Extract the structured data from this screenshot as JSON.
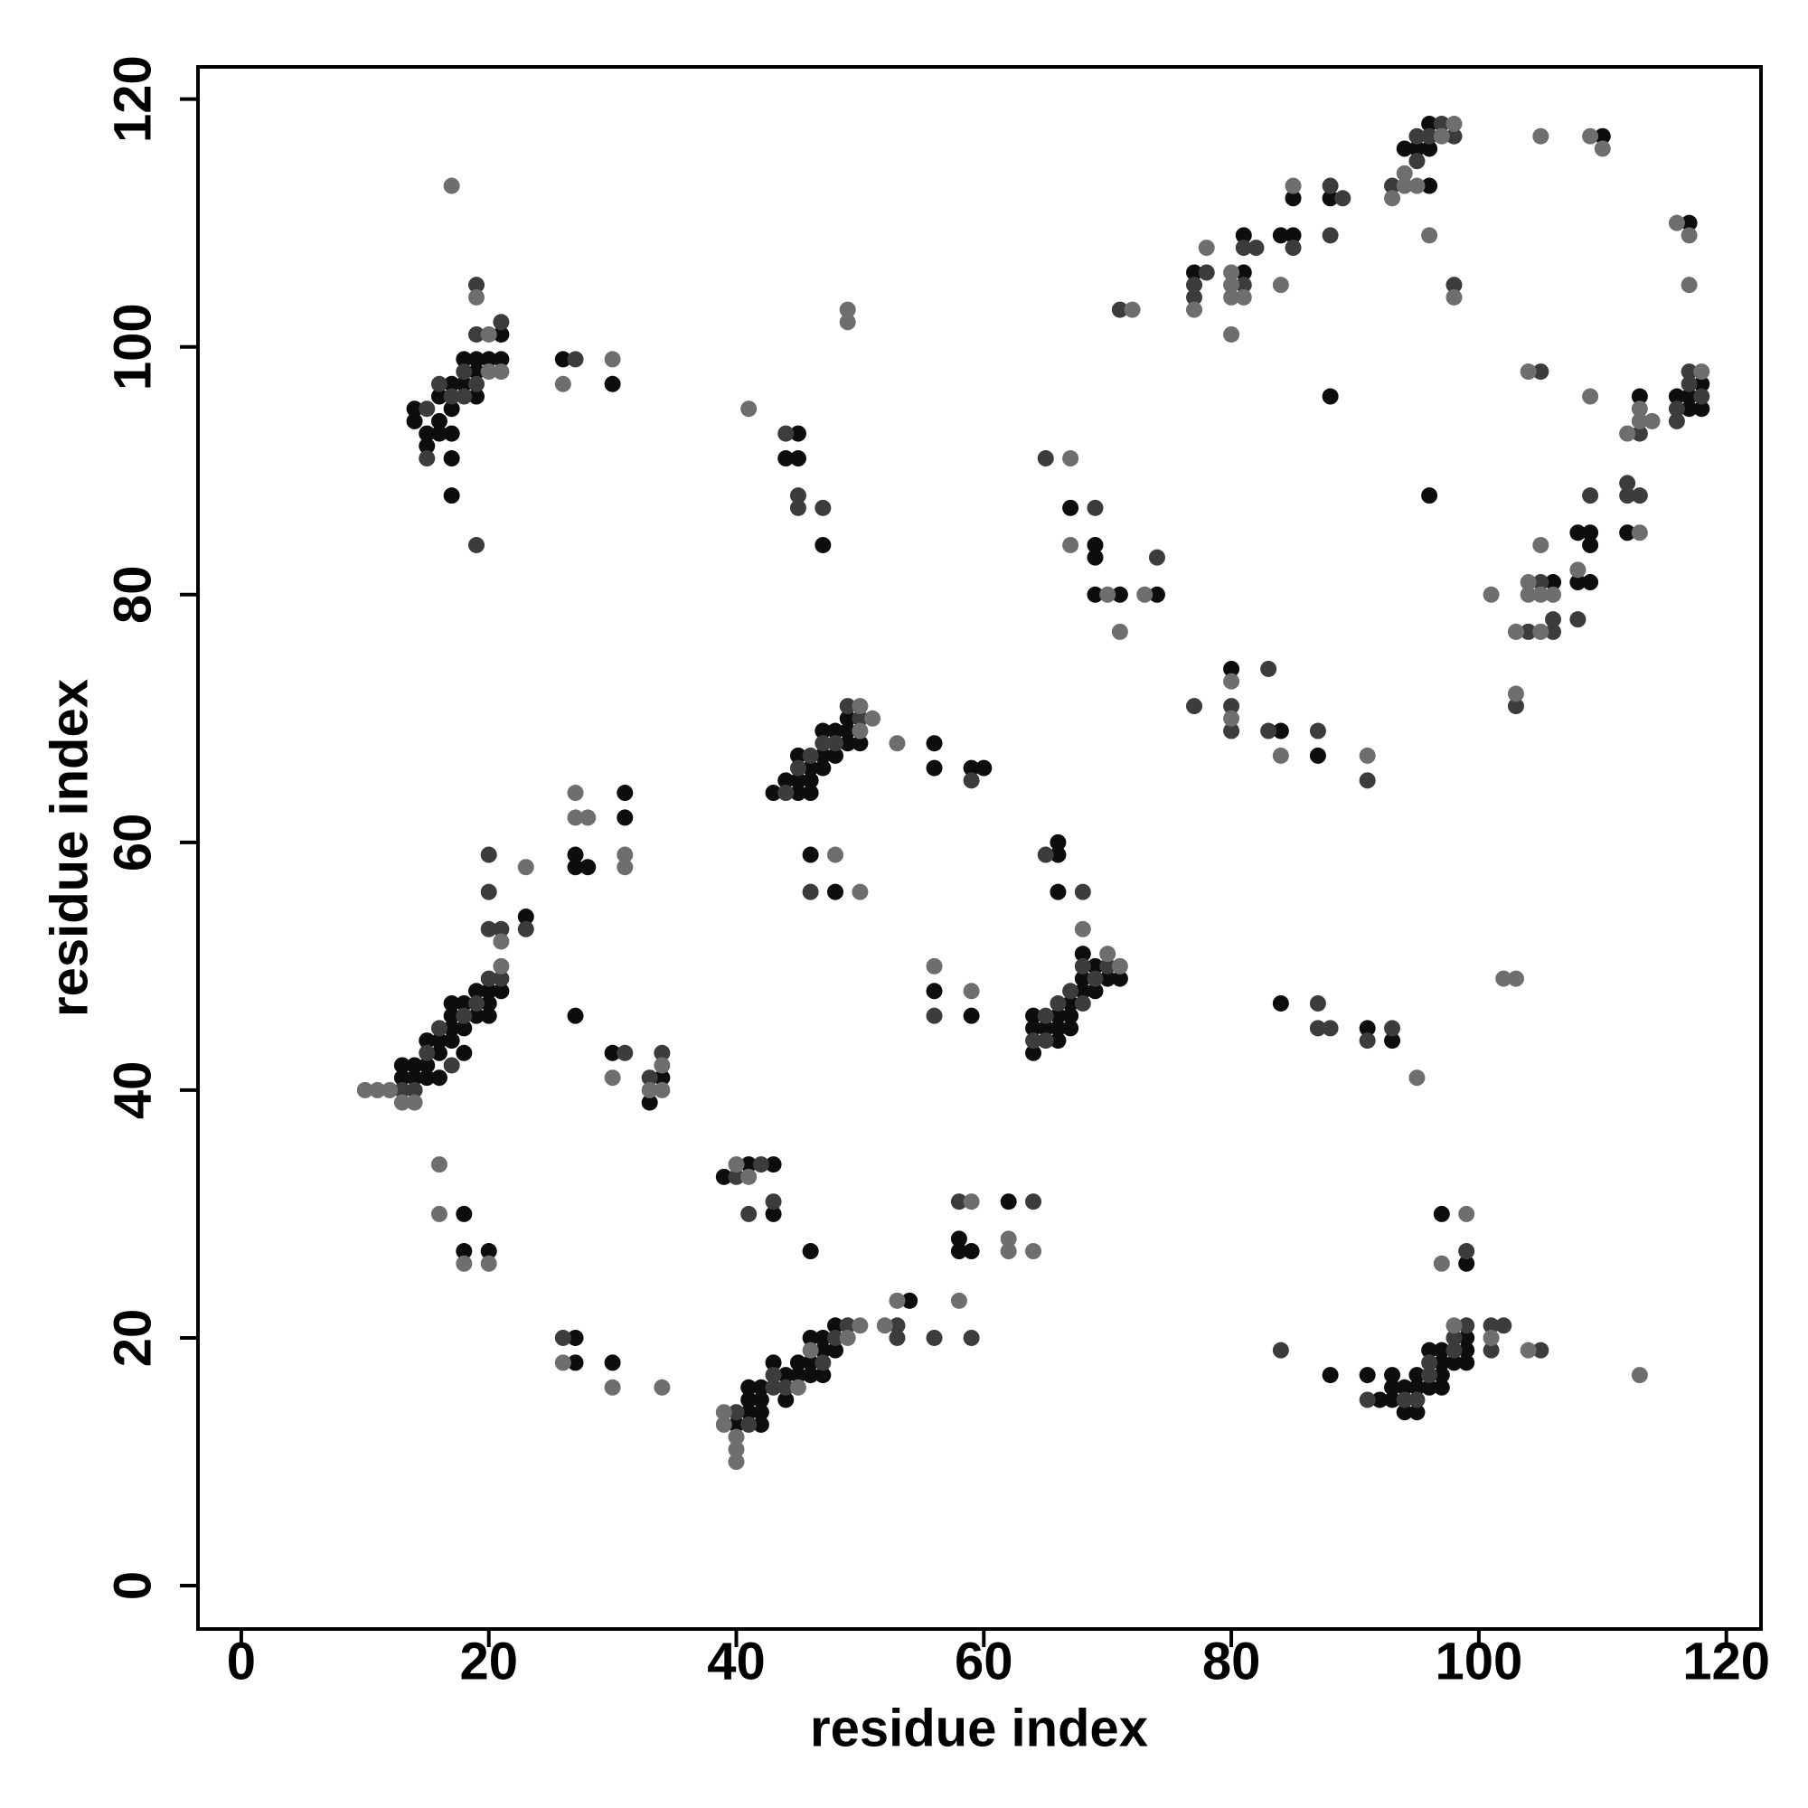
{
  "chart_data": {
    "type": "scatter",
    "x_label": "residue index",
    "y_label": "residue index",
    "xlim": [
      -3.5,
      122.8
    ],
    "ylim": [
      -3.5,
      122.6
    ],
    "xticks": [
      0,
      20,
      40,
      60,
      80,
      100,
      120
    ],
    "yticks": [
      0,
      20,
      40,
      60,
      80,
      100,
      120
    ],
    "grid": false,
    "series": [
      {
        "color": "#0d0d0d",
        "x": [
          14,
          14,
          15,
          15,
          16,
          16,
          16,
          17,
          17,
          17,
          17,
          17,
          18,
          18,
          19,
          19,
          19,
          20,
          21,
          21,
          26,
          30,
          13,
          13,
          14,
          14,
          15,
          15,
          15,
          16,
          16,
          16,
          17,
          17,
          17,
          17,
          18,
          18,
          18,
          19,
          19,
          20,
          20,
          20,
          21,
          23,
          27,
          27,
          28,
          31,
          31,
          27,
          30,
          33,
          34,
          18,
          18,
          20,
          27,
          27,
          30,
          40,
          41,
          41,
          41,
          42,
          42,
          42,
          42,
          43,
          44,
          44,
          45,
          45,
          46,
          46,
          46,
          47,
          47,
          47,
          48,
          48,
          46,
          39,
          41,
          43,
          43,
          54,
          58,
          58,
          59,
          62,
          45,
          44,
          45,
          47,
          43,
          44,
          45,
          45,
          45,
          46,
          46,
          46,
          47,
          47,
          47,
          48,
          48,
          49,
          49,
          49,
          50,
          56,
          56,
          59,
          60,
          46,
          48,
          56,
          59,
          64,
          64,
          64,
          65,
          66,
          66,
          66,
          67,
          67,
          67,
          68,
          68,
          68,
          69,
          69,
          70,
          71,
          66,
          66,
          66,
          67,
          69,
          69,
          69,
          71,
          74,
          77,
          81,
          81,
          84,
          85,
          85,
          88,
          94,
          95,
          96,
          96,
          96,
          88,
          96,
          110,
          117,
          106,
          108,
          108,
          109,
          109,
          109,
          112,
          113,
          116,
          117,
          117,
          118,
          118,
          80,
          84,
          87,
          84,
          91,
          93,
          88,
          91,
          92,
          93,
          93,
          93,
          94,
          94,
          95,
          95,
          95,
          96,
          96,
          97,
          97,
          97,
          97,
          98,
          99,
          99,
          99,
          97,
          99
        ],
        "y": [
          95,
          94,
          93,
          92,
          96,
          94,
          93,
          97,
          95,
          93,
          91,
          88,
          99,
          97,
          99,
          98,
          96,
          99,
          101,
          99,
          99,
          97,
          42,
          41,
          42,
          41,
          44,
          42,
          41,
          44,
          43,
          41,
          47,
          46,
          45,
          44,
          47,
          45,
          43,
          48,
          46,
          48,
          47,
          46,
          48,
          54,
          59,
          58,
          58,
          64,
          62,
          46,
          43,
          39,
          41,
          30,
          27,
          27,
          20,
          18,
          18,
          13,
          16,
          15,
          14,
          16,
          15,
          14,
          13,
          18,
          17,
          15,
          18,
          17,
          20,
          18,
          17,
          20,
          19,
          17,
          21,
          19,
          27,
          33,
          34,
          34,
          30,
          23,
          28,
          27,
          27,
          31,
          93,
          91,
          91,
          84,
          64,
          65,
          67,
          65,
          64,
          66,
          65,
          64,
          69,
          67,
          66,
          69,
          67,
          70,
          69,
          68,
          68,
          68,
          66,
          66,
          66,
          59,
          56,
          48,
          46,
          46,
          45,
          43,
          45,
          46,
          45,
          44,
          47,
          46,
          45,
          49,
          48,
          51,
          50,
          48,
          49,
          49,
          60,
          59,
          56,
          87,
          84,
          83,
          80,
          80,
          80,
          106,
          109,
          106,
          109,
          109,
          112,
          112,
          116,
          116,
          118,
          116,
          113,
          96,
          88,
          117,
          110,
          81,
          85,
          81,
          85,
          84,
          81,
          85,
          96,
          96,
          96,
          95,
          97,
          95,
          74,
          69,
          67,
          47,
          45,
          44,
          17,
          17,
          15,
          17,
          16,
          15,
          16,
          14,
          17,
          16,
          14,
          19,
          16,
          19,
          18,
          17,
          16,
          18,
          20,
          19,
          18,
          30,
          26
        ]
      },
      {
        "color": "#3c3c3c",
        "x": [
          15,
          15,
          16,
          17,
          18,
          18,
          19,
          19,
          19,
          19,
          21,
          27,
          13,
          14,
          15,
          16,
          17,
          18,
          19,
          20,
          20,
          20,
          20,
          21,
          21,
          23,
          31,
          33,
          34,
          26,
          40,
          41,
          43,
          43,
          44,
          47,
          48,
          49,
          40,
          42,
          43,
          41,
          53,
          53,
          56,
          58,
          59,
          64,
          44,
          45,
          45,
          47,
          44,
          45,
          46,
          47,
          48,
          49,
          50,
          59,
          46,
          56,
          64,
          65,
          65,
          66,
          67,
          68,
          68,
          69,
          70,
          65,
          68,
          65,
          69,
          74,
          71,
          77,
          77,
          78,
          81,
          81,
          82,
          85,
          88,
          88,
          89,
          93,
          95,
          95,
          96,
          97,
          98,
          98,
          104,
          105,
          106,
          106,
          108,
          109,
          112,
          112,
          113,
          113,
          116,
          116,
          117,
          117,
          118,
          105,
          103,
          77,
          80,
          80,
          83,
          83,
          87,
          91,
          87,
          87,
          88,
          91,
          93,
          84,
          91,
          94,
          95,
          96,
          96,
          98,
          98,
          99,
          101,
          101,
          102,
          105,
          99
        ],
        "y": [
          95,
          91,
          97,
          96,
          98,
          96,
          97,
          101,
          105,
          84,
          102,
          99,
          40,
          40,
          43,
          45,
          42,
          46,
          47,
          49,
          53,
          56,
          59,
          49,
          53,
          53,
          43,
          41,
          43,
          20,
          14,
          13,
          17,
          16,
          16,
          18,
          20,
          21,
          33,
          34,
          31,
          30,
          21,
          20,
          20,
          31,
          20,
          31,
          93,
          88,
          87,
          87,
          64,
          66,
          67,
          68,
          68,
          71,
          70,
          65,
          56,
          46,
          44,
          46,
          44,
          47,
          48,
          50,
          47,
          49,
          50,
          59,
          56,
          91,
          87,
          83,
          103,
          105,
          104,
          106,
          108,
          105,
          108,
          108,
          113,
          109,
          112,
          113,
          117,
          115,
          117,
          118,
          117,
          105,
          77,
          81,
          78,
          77,
          78,
          88,
          89,
          88,
          93,
          88,
          95,
          94,
          98,
          97,
          96,
          98,
          71,
          71,
          71,
          69,
          74,
          69,
          69,
          65,
          47,
          45,
          45,
          44,
          45,
          19,
          15,
          15,
          15,
          18,
          17,
          20,
          19,
          21,
          21,
          19,
          21,
          19,
          27
        ]
      },
      {
        "color": "#6e6e6e",
        "x": [
          19,
          20,
          20,
          21,
          17,
          26,
          30,
          10,
          11,
          12,
          13,
          14,
          21,
          21,
          23,
          27,
          27,
          28,
          31,
          31,
          30,
          33,
          34,
          34,
          16,
          16,
          18,
          20,
          26,
          30,
          34,
          39,
          39,
          40,
          40,
          40,
          45,
          46,
          49,
          50,
          40,
          41,
          52,
          53,
          59,
          58,
          62,
          62,
          64,
          41,
          50,
          50,
          51,
          53,
          48,
          50,
          49,
          49,
          56,
          59,
          68,
          70,
          71,
          67,
          67,
          70,
          71,
          72,
          73,
          77,
          78,
          80,
          80,
          80,
          80,
          81,
          84,
          85,
          93,
          94,
          94,
          95,
          96,
          97,
          98,
          98,
          105,
          109,
          110,
          116,
          117,
          117,
          101,
          103,
          104,
          104,
          105,
          105,
          105,
          106,
          108,
          109,
          112,
          113,
          113,
          113,
          114,
          118,
          104,
          103,
          80,
          80,
          84,
          91,
          95,
          102,
          103,
          98,
          101,
          104,
          113,
          97,
          99
        ],
        "y": [
          104,
          101,
          98,
          98,
          113,
          97,
          99,
          40,
          40,
          40,
          39,
          39,
          50,
          52,
          58,
          64,
          62,
          62,
          59,
          58,
          41,
          40,
          42,
          40,
          34,
          30,
          26,
          26,
          18,
          16,
          16,
          14,
          13,
          12,
          11,
          10,
          16,
          19,
          20,
          21,
          34,
          33,
          21,
          23,
          31,
          23,
          28,
          27,
          27,
          95,
          71,
          69,
          70,
          68,
          59,
          56,
          103,
          102,
          50,
          48,
          53,
          51,
          50,
          91,
          84,
          80,
          77,
          103,
          80,
          103,
          108,
          106,
          105,
          104,
          101,
          104,
          105,
          113,
          112,
          114,
          113,
          113,
          109,
          117,
          118,
          104,
          117,
          117,
          116,
          110,
          109,
          105,
          80,
          77,
          81,
          80,
          84,
          80,
          77,
          80,
          82,
          96,
          93,
          95,
          94,
          85,
          94,
          98,
          98,
          72,
          73,
          70,
          67,
          67,
          41,
          49,
          49,
          21,
          20,
          19,
          17,
          26,
          30
        ]
      }
    ]
  }
}
